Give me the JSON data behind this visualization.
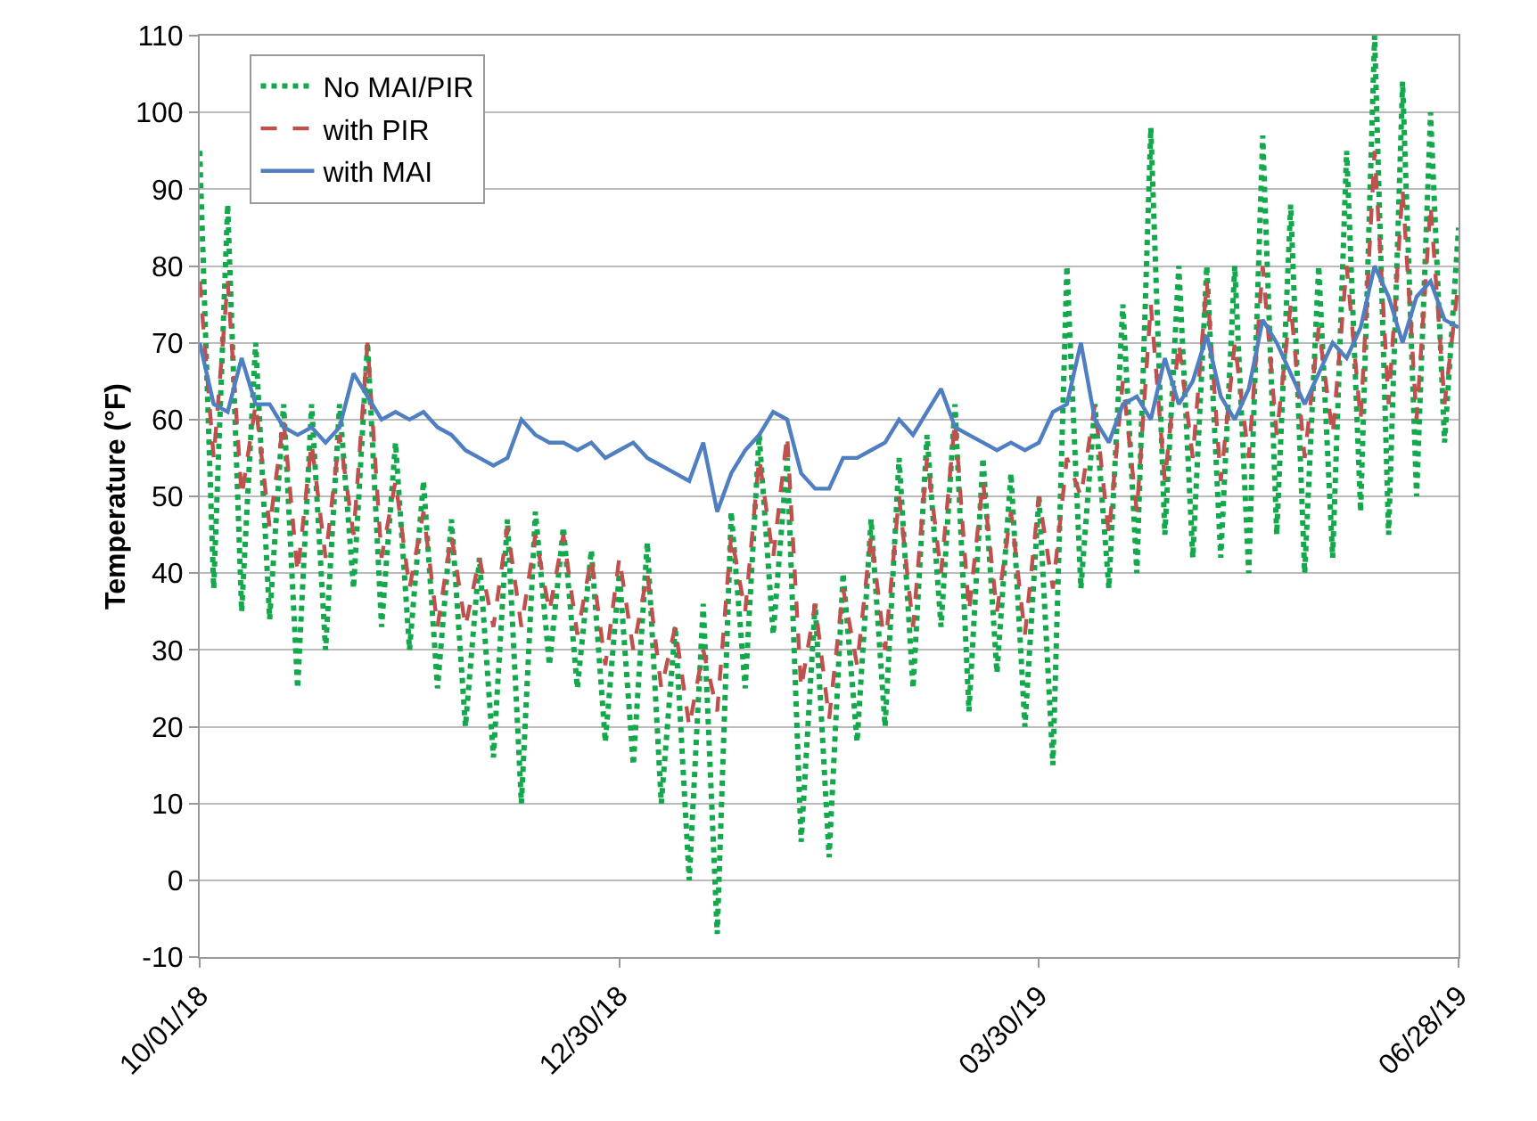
{
  "chart_data": {
    "type": "line",
    "ylabel": "Temperature (°F)",
    "x": [
      "2018-10-01",
      "2018-10-04",
      "2018-10-07",
      "2018-10-10",
      "2018-10-13",
      "2018-10-16",
      "2018-10-19",
      "2018-10-22",
      "2018-10-25",
      "2018-10-28",
      "2018-10-31",
      "2018-11-03",
      "2018-11-06",
      "2018-11-09",
      "2018-11-12",
      "2018-11-15",
      "2018-11-18",
      "2018-11-21",
      "2018-11-24",
      "2018-11-27",
      "2018-11-30",
      "2018-12-03",
      "2018-12-06",
      "2018-12-09",
      "2018-12-12",
      "2018-12-15",
      "2018-12-18",
      "2018-12-21",
      "2018-12-24",
      "2018-12-27",
      "2018-12-30",
      "2019-01-02",
      "2019-01-05",
      "2019-01-08",
      "2019-01-11",
      "2019-01-14",
      "2019-01-17",
      "2019-01-20",
      "2019-01-23",
      "2019-01-26",
      "2019-01-29",
      "2019-02-01",
      "2019-02-04",
      "2019-02-07",
      "2019-02-10",
      "2019-02-13",
      "2019-02-16",
      "2019-02-19",
      "2019-02-22",
      "2019-02-25",
      "2019-02-28",
      "2019-03-03",
      "2019-03-06",
      "2019-03-09",
      "2019-03-12",
      "2019-03-15",
      "2019-03-18",
      "2019-03-21",
      "2019-03-24",
      "2019-03-27",
      "2019-03-30",
      "2019-04-02",
      "2019-04-05",
      "2019-04-08",
      "2019-04-11",
      "2019-04-14",
      "2019-04-17",
      "2019-04-20",
      "2019-04-23",
      "2019-04-26",
      "2019-04-29",
      "2019-05-02",
      "2019-05-05",
      "2019-05-08",
      "2019-05-11",
      "2019-05-14",
      "2019-05-17",
      "2019-05-20",
      "2019-05-23",
      "2019-05-26",
      "2019-05-29",
      "2019-06-01",
      "2019-06-04",
      "2019-06-07",
      "2019-06-10",
      "2019-06-13",
      "2019-06-16",
      "2019-06-19",
      "2019-06-22",
      "2019-06-25",
      "2019-06-28"
    ],
    "series": [
      {
        "name": "No MAI/PIR",
        "color": "#13a84b",
        "line_style": "dotted",
        "values": [
          95,
          38,
          88,
          35,
          70,
          34,
          62,
          25,
          62,
          30,
          62,
          38,
          70,
          33,
          57,
          30,
          52,
          25,
          47,
          20,
          42,
          16,
          47,
          10,
          48,
          28,
          46,
          25,
          43,
          18,
          40,
          15,
          44,
          10,
          33,
          0,
          36,
          -7,
          48,
          25,
          58,
          32,
          55,
          5,
          36,
          3,
          40,
          18,
          47,
          20,
          55,
          25,
          58,
          33,
          62,
          22,
          55,
          27,
          53,
          20,
          50,
          15,
          80,
          38,
          62,
          38,
          75,
          40,
          98,
          45,
          80,
          42,
          80,
          42,
          80,
          40,
          97,
          45,
          88,
          40,
          80,
          42,
          95,
          48,
          110,
          45,
          104,
          50,
          100,
          57,
          85
        ]
      },
      {
        "name": "with PIR",
        "color": "#c0504d",
        "line_style": "dashed",
        "values": [
          78,
          55,
          78,
          50,
          62,
          46,
          60,
          40,
          57,
          42,
          58,
          45,
          70,
          42,
          52,
          38,
          48,
          33,
          45,
          33,
          42,
          33,
          46,
          33,
          45,
          35,
          45,
          32,
          42,
          28,
          42,
          30,
          40,
          25,
          33,
          20,
          30,
          22,
          45,
          35,
          55,
          42,
          58,
          25,
          36,
          21,
          38,
          28,
          45,
          30,
          50,
          33,
          55,
          40,
          60,
          35,
          52,
          35,
          48,
          32,
          50,
          38,
          55,
          50,
          62,
          45,
          65,
          48,
          75,
          52,
          70,
          55,
          78,
          52,
          70,
          55,
          80,
          58,
          75,
          55,
          72,
          58,
          80,
          60,
          95,
          62,
          90,
          60,
          88,
          62,
          78
        ]
      },
      {
        "name": "with MAI",
        "color": "#4f7fc0",
        "line_style": "solid",
        "values": [
          70,
          62,
          61,
          68,
          62,
          62,
          59,
          58,
          59,
          57,
          59,
          66,
          63,
          60,
          61,
          60,
          61,
          59,
          58,
          56,
          55,
          54,
          55,
          60,
          58,
          57,
          57,
          56,
          57,
          55,
          56,
          57,
          55,
          54,
          53,
          52,
          57,
          48,
          53,
          56,
          58,
          61,
          60,
          53,
          51,
          51,
          55,
          55,
          56,
          57,
          60,
          58,
          61,
          64,
          59,
          58,
          57,
          56,
          57,
          56,
          57,
          61,
          62,
          70,
          60,
          57,
          62,
          63,
          60,
          68,
          62,
          65,
          71,
          63,
          60,
          64,
          73,
          70,
          66,
          62,
          66,
          70,
          68,
          72,
          80,
          76,
          70,
          76,
          78,
          73,
          72
        ]
      }
    ],
    "xlim": [
      "2018-10-01",
      "2019-06-28"
    ],
    "xticks": [
      {
        "value": "2018-10-01",
        "label": "10/01/18"
      },
      {
        "value": "2018-12-30",
        "label": "12/30/18"
      },
      {
        "value": "2019-03-30",
        "label": "03/30/19"
      },
      {
        "value": "2019-06-28",
        "label": "06/28/19"
      }
    ],
    "ylim": [
      -10,
      110
    ],
    "yticks": [
      -10,
      0,
      10,
      20,
      30,
      40,
      50,
      60,
      70,
      80,
      90,
      100,
      110
    ],
    "grid": "y",
    "legend": "top left"
  }
}
